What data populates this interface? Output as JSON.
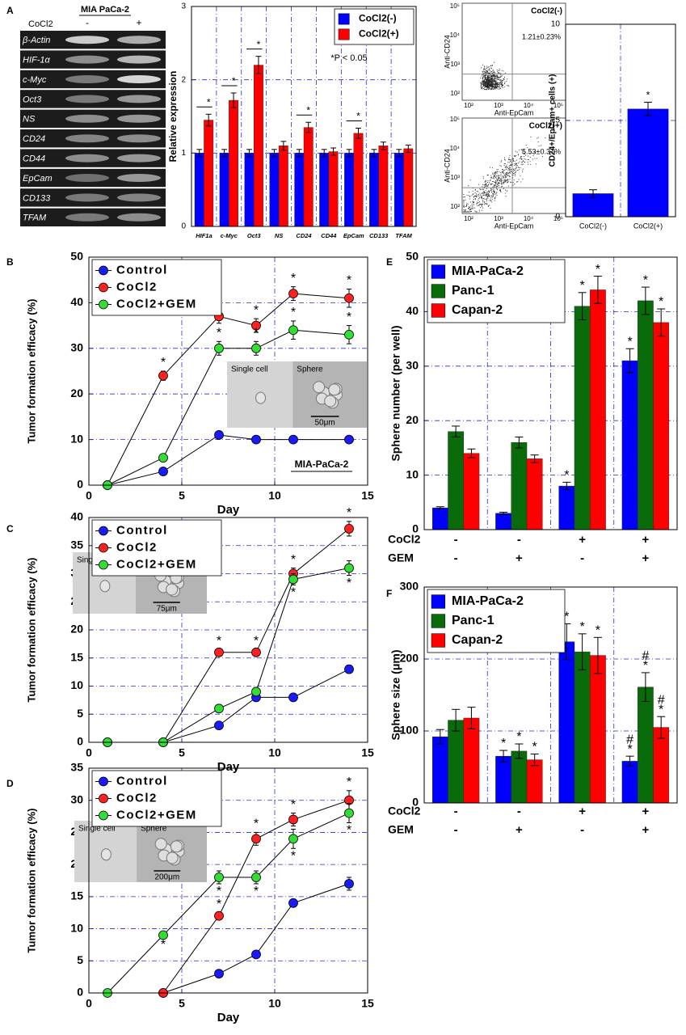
{
  "panel_labels": [
    "A",
    "B",
    "C",
    "D",
    "E",
    "F"
  ],
  "gel": {
    "title": "MIA PaCa-2",
    "treatment": "CoCl2",
    "lanes": [
      "-",
      "+"
    ],
    "genes": [
      "β-Actin",
      "HIF-1α",
      "c-Myc",
      "Oct3",
      "NS",
      "CD24",
      "CD44",
      "EpCam",
      "CD133",
      "TFAM"
    ]
  },
  "flow": {
    "x_label": "Anti-EpCam",
    "y_label": "Anti-CD24",
    "xticks": [
      "10²",
      "10³",
      "10⁴",
      "10⁵"
    ],
    "yticks": [
      "10²",
      "10³",
      "10⁴",
      "10⁵"
    ],
    "plots": [
      {
        "label": "CoCl2(-)",
        "percent": "1.21±0.23%"
      },
      {
        "label": "CoCl2(+)",
        "percent": "5.53±0.37%"
      }
    ]
  },
  "chart_data": [
    {
      "type": "bar",
      "ylabel": "Relative expression",
      "categories": [
        "HIF1a",
        "c-Myc",
        "Oct3",
        "NS",
        "CD24",
        "CD44",
        "EpCam",
        "CD133",
        "TFAM"
      ],
      "series": [
        {
          "name": "CoCl2(-)",
          "color": "#0000ff",
          "values": [
            1,
            1,
            1,
            1,
            1,
            1,
            1,
            1,
            1
          ],
          "errors": [
            0.05,
            0.05,
            0.05,
            0.05,
            0.05,
            0.05,
            0.05,
            0.05,
            0.05
          ],
          "sig": [
            null,
            null,
            null,
            null,
            null,
            null,
            null,
            null,
            null
          ]
        },
        {
          "name": "CoCl2(+)",
          "color": "#ff0000",
          "values": [
            1.45,
            1.72,
            2.2,
            1.1,
            1.35,
            1.02,
            1.27,
            1.1,
            1.06
          ],
          "errors": [
            0.08,
            0.1,
            0.12,
            0.06,
            0.07,
            0.05,
            0.07,
            0.05,
            0.05
          ],
          "sig": [
            [
              "*"
            ],
            [
              "*"
            ],
            [
              "*"
            ],
            null,
            [
              "*"
            ],
            null,
            [
              "*"
            ],
            null,
            null
          ]
        }
      ],
      "ylim": [
        0,
        3
      ],
      "yticks": [
        0,
        1,
        2,
        3
      ],
      "grid": true,
      "legend": "upper right",
      "annotation": "*P < 0.05"
    },
    {
      "type": "bar",
      "ylabel": "CD24+/EpCam+ cells (+)",
      "categories": [
        "CoCl2(-)",
        "CoCl2(+)"
      ],
      "values": [
        1.2,
        5.6
      ],
      "errors": [
        0.2,
        0.35
      ],
      "sig": [
        null,
        [
          "*"
        ]
      ],
      "color": "#0000ff",
      "ylim": [
        0,
        10
      ],
      "yticks": [
        0,
        5,
        10
      ],
      "grid": true
    },
    {
      "type": "line",
      "xlabel": "Day",
      "ylabel": "Tumor formation efficacy (%)",
      "x": [
        1,
        4,
        7,
        9,
        11,
        14
      ],
      "series": [
        {
          "name": "Control",
          "color": "#1a1aff",
          "values": [
            0,
            3,
            11,
            10,
            10,
            10
          ],
          "errors": [
            0,
            0.5,
            0.5,
            0.3,
            0.3,
            0.3
          ],
          "sig": [
            null,
            null,
            null,
            null,
            null,
            null
          ]
        },
        {
          "name": "CoCl2",
          "color": "#ff2020",
          "values": [
            0,
            24,
            37,
            35,
            42,
            41
          ],
          "errors": [
            0,
            1,
            1.5,
            1.5,
            1.5,
            2
          ],
          "sig": [
            null,
            [
              "*"
            ],
            [
              "*"
            ],
            [
              "*"
            ],
            [
              "*"
            ],
            [
              "*"
            ]
          ]
        },
        {
          "name": "CoCl2+GEM",
          "color": "#33dd33",
          "values": [
            0,
            6,
            30,
            30,
            34,
            33
          ],
          "errors": [
            0,
            0.5,
            1.5,
            1.5,
            2,
            2
          ],
          "sig": [
            null,
            null,
            [
              "*"
            ],
            [
              "*"
            ],
            [
              "*"
            ],
            [
              "*"
            ]
          ]
        }
      ],
      "xlim": [
        0,
        15
      ],
      "xticks": [
        0,
        5,
        10,
        15
      ],
      "ylim": [
        0,
        50
      ],
      "yticks": [
        0,
        10,
        20,
        30,
        40,
        50
      ],
      "grid": true,
      "legend": "upper left",
      "annotation": "MIA-PaCa-2",
      "inset": {
        "labels": [
          "Single cell",
          "Sphere"
        ],
        "scale": "50μm"
      }
    },
    {
      "type": "line",
      "xlabel": "Day",
      "ylabel": "Tumor formation efficacy (%)",
      "x": [
        1,
        4,
        7,
        9,
        11,
        14
      ],
      "series": [
        {
          "name": "Control",
          "color": "#1a1aff",
          "values": [
            0,
            0,
            3,
            8,
            8,
            13
          ],
          "errors": [
            0,
            0,
            0.3,
            0.3,
            0.3,
            0.7
          ],
          "sig": [
            null,
            null,
            null,
            null,
            null,
            null
          ]
        },
        {
          "name": "CoCl2",
          "color": "#ff2020",
          "values": [
            0,
            0,
            16,
            16,
            30,
            38
          ],
          "errors": [
            0,
            0,
            0.5,
            0.5,
            1,
            1.3
          ],
          "sig": [
            null,
            null,
            [
              "*"
            ],
            [
              "*"
            ],
            [
              "*"
            ],
            [
              "*"
            ]
          ]
        },
        {
          "name": "CoCl2+GEM",
          "color": "#33dd33",
          "values": [
            0,
            0,
            6,
            9,
            29,
            31
          ],
          "errors": [
            0,
            0,
            0.3,
            0.5,
            1,
            1.3
          ],
          "sig": [
            null,
            null,
            null,
            null,
            [
              "*"
            ],
            [
              "*"
            ]
          ]
        }
      ],
      "xlim": [
        0,
        15
      ],
      "xticks": [
        0,
        5,
        10,
        15
      ],
      "ylim": [
        0,
        40
      ],
      "yticks": [
        0,
        5,
        10,
        15,
        20,
        25,
        30,
        35,
        40
      ],
      "grid": true,
      "legend": "upper left",
      "inset": {
        "labels": [
          "Single cell",
          "Sphere"
        ],
        "scale": "75μm"
      }
    },
    {
      "type": "line",
      "xlabel": "Day",
      "ylabel": "Tumor formation efficacy (%)",
      "x": [
        1,
        4,
        7,
        9,
        11,
        14
      ],
      "series": [
        {
          "name": "Control",
          "color": "#1a1aff",
          "values": [
            null,
            0,
            3,
            6,
            14,
            17
          ],
          "errors": [
            null,
            0,
            0.3,
            0.3,
            0.6,
            1
          ],
          "sig": [
            null,
            null,
            null,
            null,
            null,
            null
          ]
        },
        {
          "name": "CoCl2",
          "color": "#ff2020",
          "values": [
            null,
            0,
            12,
            24,
            27,
            30
          ],
          "errors": [
            null,
            0,
            0.5,
            1,
            1,
            1.5
          ],
          "sig": [
            null,
            null,
            [
              "*"
            ],
            [
              "*"
            ],
            [
              "*"
            ],
            [
              "*"
            ]
          ]
        },
        {
          "name": "CoCl2+GEM",
          "color": "#33dd33",
          "values": [
            0,
            9,
            18,
            18,
            24,
            28
          ],
          "errors": [
            0,
            0.3,
            1,
            1,
            1.5,
            1.5
          ],
          "sig": [
            null,
            [
              "*"
            ],
            [
              "*"
            ],
            [
              "*"
            ],
            [
              "*"
            ],
            [
              "*"
            ]
          ]
        }
      ],
      "xlim": [
        0,
        15
      ],
      "xticks": [
        0,
        5,
        10,
        15
      ],
      "ylim": [
        0,
        35
      ],
      "yticks": [
        0,
        5,
        10,
        15,
        20,
        25,
        30,
        35
      ],
      "grid": true,
      "legend": "upper left",
      "inset": {
        "labels": [
          "Single cell",
          "Sphere"
        ],
        "scale": "200μm"
      }
    },
    {
      "type": "bar",
      "ylabel": "Sphere number (per well)",
      "conditions": [
        {
          "name": "CoCl2",
          "levels": [
            "-",
            "-",
            "+",
            "+"
          ]
        },
        {
          "name": "GEM",
          "levels": [
            "-",
            "+",
            "-",
            "+"
          ]
        }
      ],
      "series": [
        {
          "name": "MIA-PaCa-2",
          "color": "#0000ff",
          "values": [
            4,
            3,
            8,
            31
          ],
          "errors": [
            0.2,
            0.2,
            0.7,
            2.2
          ],
          "sig": [
            null,
            null,
            [
              "*"
            ],
            [
              "*"
            ]
          ]
        },
        {
          "name": "Panc-1",
          "color": "#0a6b0a",
          "values": [
            18,
            16,
            41,
            42
          ],
          "errors": [
            1,
            1,
            2.5,
            2.5
          ],
          "sig": [
            null,
            null,
            [
              "*"
            ],
            [
              "*"
            ]
          ]
        },
        {
          "name": "Capan-2",
          "color": "#ff0000",
          "values": [
            14,
            13,
            44,
            38
          ],
          "errors": [
            0.8,
            0.7,
            2.5,
            2.5
          ],
          "sig": [
            null,
            null,
            [
              "*"
            ],
            [
              "*"
            ]
          ]
        }
      ],
      "ylim": [
        0,
        50
      ],
      "yticks": [
        0,
        10,
        20,
        30,
        40,
        50
      ],
      "grid": true,
      "legend": "upper left"
    },
    {
      "type": "bar",
      "ylabel": "Sphere size (μm)",
      "conditions": [
        {
          "name": "CoCl2",
          "levels": [
            "-",
            "-",
            "+",
            "+"
          ]
        },
        {
          "name": "GEM",
          "levels": [
            "-",
            "+",
            "-",
            "+"
          ]
        }
      ],
      "series": [
        {
          "name": "MIA-PaCa-2",
          "color": "#0000ff",
          "values": [
            92,
            65,
            224,
            58
          ],
          "errors": [
            10,
            8,
            25,
            7
          ],
          "sig": [
            null,
            [
              "*"
            ],
            [
              "*"
            ],
            [
              "#",
              "*"
            ]
          ]
        },
        {
          "name": "Panc-1",
          "color": "#0a6b0a",
          "values": [
            115,
            72,
            210,
            161
          ],
          "errors": [
            15,
            10,
            25,
            20
          ],
          "sig": [
            null,
            [
              "*"
            ],
            [
              "*"
            ],
            [
              "#",
              "*"
            ]
          ]
        },
        {
          "name": "Capan-2",
          "color": "#ff0000",
          "values": [
            118,
            60,
            205,
            105
          ],
          "errors": [
            15,
            8,
            25,
            15
          ],
          "sig": [
            null,
            [
              "*"
            ],
            [
              "*"
            ],
            [
              "#",
              "*"
            ]
          ]
        }
      ],
      "ylim": [
        0,
        300
      ],
      "yticks": [
        0,
        100,
        200,
        300
      ],
      "grid": true,
      "legend": "upper left"
    }
  ]
}
